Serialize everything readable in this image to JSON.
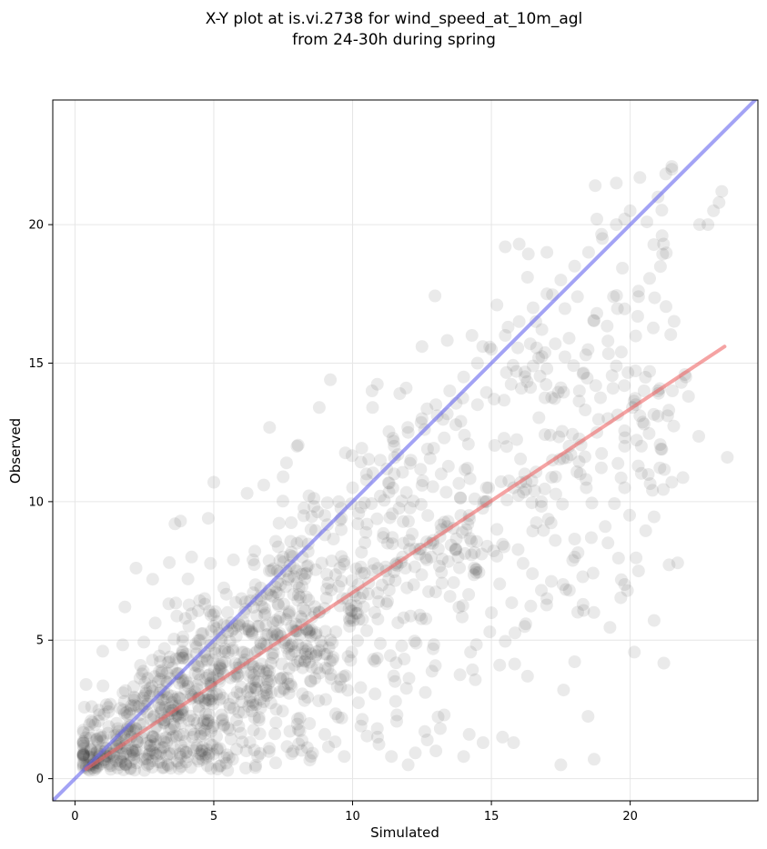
{
  "chart_data": {
    "type": "scatter",
    "title": "X-Y plot at is.vi.2738 for wind_speed_at_10m_agl",
    "subtitle": "from 24-30h during spring",
    "xlabel": "Simulated",
    "ylabel": "Observed",
    "xlim": [
      -0.8,
      24.6
    ],
    "ylim": [
      -0.8,
      24.5
    ],
    "xticks": [
      0,
      5,
      10,
      15,
      20
    ],
    "yticks": [
      0,
      5,
      10,
      15,
      20
    ],
    "grid": true,
    "reference_line": {
      "x": [
        -0.8,
        24.6
      ],
      "y": [
        -0.8,
        24.6
      ],
      "color": "#6666ee"
    },
    "fit_line": {
      "x": [
        0.4,
        23.4
      ],
      "y": [
        0.35,
        15.6
      ],
      "color": "#ee6666"
    },
    "point_color": "#333333",
    "point_count": 1500,
    "points": [
      [
        0.5,
        0.5
      ],
      [
        0.8,
        1.0
      ],
      [
        1.0,
        1.5
      ],
      [
        1.2,
        0.8
      ],
      [
        1.5,
        2.0
      ],
      [
        1.8,
        1.2
      ],
      [
        2.0,
        2.5
      ],
      [
        2.2,
        1.0
      ],
      [
        2.5,
        3.0
      ],
      [
        2.8,
        1.5
      ],
      [
        3.0,
        3.5
      ],
      [
        3.2,
        2.0
      ],
      [
        3.5,
        4.0
      ],
      [
        3.8,
        2.5
      ],
      [
        4.0,
        4.5
      ],
      [
        4.2,
        3.0
      ],
      [
        4.5,
        5.0
      ],
      [
        4.8,
        2.0
      ],
      [
        5.0,
        5.5
      ],
      [
        5.2,
        3.5
      ],
      [
        5.5,
        6.0
      ],
      [
        5.8,
        4.0
      ],
      [
        6.0,
        6.5
      ],
      [
        6.2,
        4.5
      ],
      [
        6.5,
        7.0
      ],
      [
        6.8,
        3.0
      ],
      [
        7.0,
        7.5
      ],
      [
        7.2,
        5.0
      ],
      [
        7.5,
        8.0
      ],
      [
        7.8,
        5.5
      ],
      [
        8.0,
        8.5
      ],
      [
        8.2,
        4.0
      ],
      [
        8.5,
        9.0
      ],
      [
        8.8,
        6.0
      ],
      [
        9.0,
        9.5
      ],
      [
        9.2,
        5.0
      ],
      [
        9.5,
        10.0
      ],
      [
        9.8,
        6.5
      ],
      [
        10.0,
        10.5
      ],
      [
        10.2,
        7.0
      ],
      [
        10.5,
        11.0
      ],
      [
        10.8,
        6.0
      ],
      [
        11.0,
        11.5
      ],
      [
        11.2,
        7.5
      ],
      [
        11.5,
        12.0
      ],
      [
        11.8,
        8.0
      ],
      [
        12.0,
        12.5
      ],
      [
        12.2,
        7.0
      ],
      [
        12.5,
        13.0
      ],
      [
        12.8,
        8.5
      ],
      [
        13.0,
        13.5
      ],
      [
        13.2,
        9.0
      ],
      [
        13.5,
        14.0
      ],
      [
        13.8,
        8.0
      ],
      [
        14.0,
        14.5
      ],
      [
        14.2,
        9.5
      ],
      [
        14.5,
        15.0
      ],
      [
        14.8,
        10.0
      ],
      [
        15.0,
        15.5
      ],
      [
        15.2,
        9.0
      ],
      [
        15.5,
        16.0
      ],
      [
        15.8,
        10.5
      ],
      [
        16.0,
        16.5
      ],
      [
        16.2,
        11.0
      ],
      [
        16.5,
        17.0
      ],
      [
        16.8,
        10.0
      ],
      [
        17.0,
        17.5
      ],
      [
        17.2,
        11.5
      ],
      [
        17.5,
        18.0
      ],
      [
        17.8,
        12.0
      ],
      [
        18.0,
        18.5
      ],
      [
        18.2,
        11.0
      ],
      [
        18.5,
        19.0
      ],
      [
        18.8,
        12.5
      ],
      [
        19.0,
        19.5
      ],
      [
        19.2,
        13.0
      ],
      [
        19.5,
        20.0
      ],
      [
        19.8,
        12.0
      ],
      [
        20.0,
        20.5
      ],
      [
        20.2,
        13.5
      ],
      [
        20.5,
        14.0
      ],
      [
        21.0,
        21.0
      ],
      [
        21.5,
        22.0
      ],
      [
        22.0,
        14.5
      ],
      [
        22.5,
        20.0
      ],
      [
        23.0,
        20.5
      ],
      [
        23.3,
        21.2
      ],
      [
        23.5,
        11.6
      ],
      [
        21.2,
        19.3
      ],
      [
        19.5,
        21.5
      ],
      [
        20.3,
        7.5
      ],
      [
        18.7,
        0.7
      ],
      [
        17.5,
        0.5
      ],
      [
        15.8,
        1.3
      ],
      [
        15.4,
        1.5
      ],
      [
        14.0,
        0.8
      ],
      [
        13.0,
        1.0
      ],
      [
        12.0,
        0.5
      ],
      [
        16.3,
        3.7
      ],
      [
        17.6,
        3.2
      ],
      [
        16.0,
        19.3
      ],
      [
        15.5,
        19.2
      ],
      [
        17.0,
        19.0
      ],
      [
        18.8,
        20.2
      ],
      [
        19.8,
        20.2
      ],
      [
        20.6,
        20.1
      ],
      [
        21.5,
        22.1
      ],
      [
        22.8,
        20.0
      ],
      [
        23.2,
        20.8
      ],
      [
        16.3,
        18.1
      ],
      [
        15.2,
        17.1
      ],
      [
        15.6,
        16.3
      ],
      [
        16.6,
        16.5
      ],
      [
        17.3,
        15.7
      ],
      [
        18.1,
        17.4
      ],
      [
        18.8,
        16.8
      ],
      [
        19.4,
        17.4
      ],
      [
        20.3,
        17.4
      ],
      [
        14.3,
        16.0
      ],
      [
        12.5,
        15.6
      ],
      [
        11.7,
        13.9
      ],
      [
        10.7,
        14.0
      ],
      [
        9.2,
        14.4
      ],
      [
        8.8,
        13.4
      ],
      [
        8.0,
        12.0
      ],
      [
        7.5,
        10.9
      ],
      [
        6.8,
        10.6
      ],
      [
        6.2,
        10.3
      ],
      [
        5.0,
        10.7
      ],
      [
        4.8,
        9.4
      ],
      [
        3.6,
        9.2
      ],
      [
        3.8,
        9.3
      ],
      [
        4.2,
        8.0
      ],
      [
        3.4,
        7.8
      ],
      [
        2.8,
        7.2
      ],
      [
        2.2,
        7.6
      ],
      [
        1.8,
        6.2
      ],
      [
        1.0,
        4.6
      ],
      [
        0.4,
        3.4
      ],
      [
        0.6,
        2.6
      ],
      [
        2.5,
        0.3
      ],
      [
        3.2,
        0.4
      ],
      [
        4.0,
        0.6
      ],
      [
        4.5,
        0.9
      ],
      [
        5.5,
        0.3
      ],
      [
        6.5,
        0.4
      ],
      [
        7.0,
        1.1
      ],
      [
        7.8,
        0.9
      ],
      [
        8.5,
        0.8
      ],
      [
        9.0,
        1.6
      ],
      [
        9.7,
        0.8
      ],
      [
        10.3,
        1.9
      ],
      [
        10.9,
        1.5
      ],
      [
        11.4,
        0.8
      ],
      [
        11.6,
        2.3
      ],
      [
        12.6,
        1.7
      ],
      [
        13.3,
        2.3
      ],
      [
        14.2,
        1.6
      ],
      [
        14.7,
        1.3
      ],
      [
        15.3,
        4.1
      ],
      [
        16.8,
        6.8
      ],
      [
        17.0,
        6.5
      ],
      [
        17.3,
        8.6
      ],
      [
        18.0,
        8.0
      ],
      [
        18.6,
        8.7
      ],
      [
        19.1,
        9.1
      ],
      [
        19.8,
        10.5
      ],
      [
        20.5,
        12.8
      ],
      [
        21.5,
        10.7
      ],
      [
        22.1,
        13.8
      ],
      [
        21.0,
        14.0
      ],
      [
        20.7,
        14.7
      ],
      [
        19.5,
        14.9
      ],
      [
        19.2,
        15.8
      ],
      [
        18.4,
        15.3
      ],
      [
        17.8,
        15.9
      ],
      [
        17.0,
        14.8
      ],
      [
        16.5,
        14.9
      ],
      [
        15.9,
        14.7
      ],
      [
        15.1,
        13.7
      ],
      [
        14.5,
        13.5
      ],
      [
        13.9,
        12.9
      ],
      [
        13.3,
        12.3
      ],
      [
        12.7,
        11.9
      ],
      [
        12.1,
        11.5
      ],
      [
        11.5,
        11.0
      ],
      [
        11.0,
        10.2
      ],
      [
        10.3,
        9.8
      ],
      [
        9.6,
        9.4
      ],
      [
        9.0,
        8.8
      ],
      [
        8.4,
        8.2
      ],
      [
        7.9,
        7.6
      ],
      [
        7.3,
        7.1
      ],
      [
        6.7,
        6.6
      ],
      [
        6.1,
        6.0
      ],
      [
        5.5,
        5.3
      ],
      [
        4.9,
        4.9
      ],
      [
        4.3,
        4.1
      ],
      [
        3.7,
        3.8
      ],
      [
        3.1,
        3.2
      ],
      [
        2.6,
        2.4
      ],
      [
        2.0,
        1.9
      ],
      [
        1.5,
        1.4
      ],
      [
        1.1,
        1.1
      ],
      [
        0.7,
        0.6
      ],
      [
        2.9,
        0.9
      ],
      [
        3.3,
        1.3
      ],
      [
        3.9,
        1.6
      ],
      [
        4.4,
        1.2
      ],
      [
        4.9,
        1.7
      ],
      [
        5.3,
        2.1
      ],
      [
        5.9,
        2.4
      ],
      [
        6.3,
        2.8
      ],
      [
        6.9,
        3.2
      ],
      [
        7.4,
        3.6
      ],
      [
        7.9,
        4.1
      ],
      [
        8.3,
        4.6
      ],
      [
        8.9,
        4.8
      ],
      [
        9.4,
        5.3
      ],
      [
        9.9,
        5.7
      ],
      [
        10.4,
        6.2
      ],
      [
        10.9,
        6.7
      ],
      [
        11.3,
        7.2
      ],
      [
        11.9,
        7.6
      ],
      [
        12.4,
        8.1
      ],
      [
        12.9,
        8.6
      ],
      [
        13.4,
        9.1
      ],
      [
        13.9,
        9.5
      ],
      [
        14.4,
        10.1
      ],
      [
        14.9,
        10.5
      ]
    ]
  }
}
